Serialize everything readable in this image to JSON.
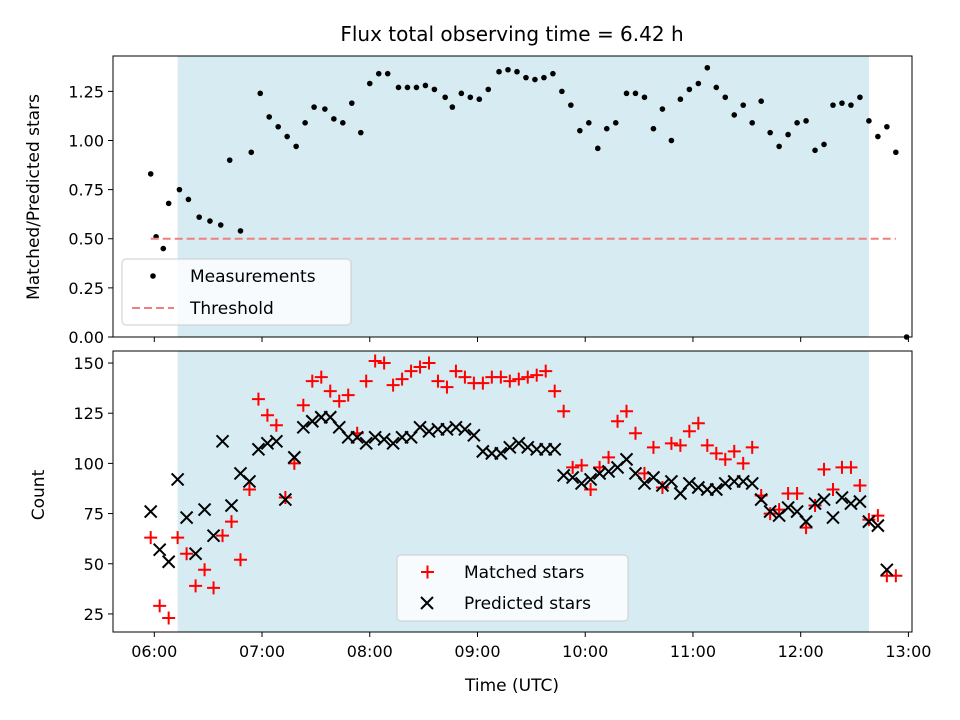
{
  "chart_data": [
    {
      "type": "scatter",
      "title": "Flux total observing time = 6.42 h",
      "ylabel": "Matched/Predicted stars",
      "xlabel": "",
      "xlim": [
        "05:37",
        "13:02"
      ],
      "ylim": [
        0,
        1.43
      ],
      "y_ticks": [
        "0.00",
        "0.25",
        "0.50",
        "0.75",
        "1.00",
        "1.25"
      ],
      "x_ticks": [
        "06:00",
        "07:00",
        "08:00",
        "09:00",
        "10:00",
        "11:00",
        "12:00",
        "13:00"
      ],
      "tick_labels_visible": false,
      "shaded_span": [
        "06:13",
        "12:38"
      ],
      "legend_position": "lower left",
      "series": [
        {
          "name": "Measurements",
          "marker": "dot",
          "color": "#000000",
          "points": [
            [
              "05:58",
              0.83
            ],
            [
              "06:01",
              0.51
            ],
            [
              "06:05",
              0.45
            ],
            [
              "06:08",
              0.68
            ],
            [
              "06:14",
              0.75
            ],
            [
              "06:19",
              0.7
            ],
            [
              "06:25",
              0.61
            ],
            [
              "06:31",
              0.59
            ],
            [
              "06:37",
              0.57
            ],
            [
              "06:42",
              0.9
            ],
            [
              "06:48",
              0.54
            ],
            [
              "06:54",
              0.94
            ],
            [
              "06:59",
              1.24
            ],
            [
              "07:04",
              1.12
            ],
            [
              "07:09",
              1.07
            ],
            [
              "07:14",
              1.02
            ],
            [
              "07:19",
              0.97
            ],
            [
              "07:24",
              1.09
            ],
            [
              "07:29",
              1.17
            ],
            [
              "07:35",
              1.16
            ],
            [
              "07:40",
              1.11
            ],
            [
              "07:45",
              1.09
            ],
            [
              "07:50",
              1.19
            ],
            [
              "07:55",
              1.04
            ],
            [
              "08:00",
              1.29
            ],
            [
              "08:05",
              1.34
            ],
            [
              "08:10",
              1.34
            ],
            [
              "08:16",
              1.27
            ],
            [
              "08:21",
              1.27
            ],
            [
              "08:26",
              1.27
            ],
            [
              "08:31",
              1.28
            ],
            [
              "08:36",
              1.26
            ],
            [
              "08:42",
              1.22
            ],
            [
              "08:46",
              1.17
            ],
            [
              "08:51",
              1.24
            ],
            [
              "08:56",
              1.22
            ],
            [
              "09:01",
              1.21
            ],
            [
              "09:06",
              1.26
            ],
            [
              "09:12",
              1.35
            ],
            [
              "09:17",
              1.36
            ],
            [
              "09:22",
              1.35
            ],
            [
              "09:27",
              1.32
            ],
            [
              "09:32",
              1.31
            ],
            [
              "09:37",
              1.32
            ],
            [
              "09:42",
              1.34
            ],
            [
              "09:47",
              1.25
            ],
            [
              "09:52",
              1.18
            ],
            [
              "09:57",
              1.05
            ],
            [
              "10:02",
              1.09
            ],
            [
              "10:07",
              0.96
            ],
            [
              "10:12",
              1.06
            ],
            [
              "10:17",
              1.09
            ],
            [
              "10:23",
              1.24
            ],
            [
              "10:28",
              1.24
            ],
            [
              "10:33",
              1.22
            ],
            [
              "10:38",
              1.06
            ],
            [
              "10:43",
              1.16
            ],
            [
              "10:48",
              1.0
            ],
            [
              "10:53",
              1.21
            ],
            [
              "10:58",
              1.26
            ],
            [
              "11:03",
              1.29
            ],
            [
              "11:08",
              1.37
            ],
            [
              "11:13",
              1.27
            ],
            [
              "11:18",
              1.22
            ],
            [
              "11:23",
              1.13
            ],
            [
              "11:28",
              1.18
            ],
            [
              "11:33",
              1.09
            ],
            [
              "11:38",
              1.2
            ],
            [
              "11:43",
              1.04
            ],
            [
              "11:48",
              0.97
            ],
            [
              "11:53",
              1.03
            ],
            [
              "11:58",
              1.09
            ],
            [
              "12:03",
              1.1
            ],
            [
              "12:08",
              0.95
            ],
            [
              "12:13",
              0.98
            ],
            [
              "12:18",
              1.18
            ],
            [
              "12:23",
              1.19
            ],
            [
              "12:28",
              1.18
            ],
            [
              "12:33",
              1.22
            ],
            [
              "12:38",
              1.1
            ],
            [
              "12:43",
              1.02
            ],
            [
              "12:48",
              1.07
            ],
            [
              "12:53",
              0.94
            ],
            [
              "12:59",
              0.0
            ]
          ]
        },
        {
          "name": "Threshold",
          "marker": "dashed-line",
          "color": "#ef8080",
          "points": [
            [
              "05:58",
              0.5
            ],
            [
              "12:53",
              0.5
            ]
          ]
        }
      ]
    },
    {
      "type": "scatter",
      "title": "",
      "ylabel": "Count",
      "xlabel": "Time (UTC)",
      "xlim": [
        "05:37",
        "13:02"
      ],
      "ylim": [
        16,
        156
      ],
      "y_ticks": [
        "25",
        "50",
        "75",
        "100",
        "125",
        "150"
      ],
      "x_ticks": [
        "06:00",
        "07:00",
        "08:00",
        "09:00",
        "10:00",
        "11:00",
        "12:00",
        "13:00"
      ],
      "shaded_span": [
        "06:13",
        "12:38"
      ],
      "legend_position": "lower center",
      "series": [
        {
          "name": "Matched stars",
          "marker": "plus",
          "color": "#ff0000",
          "points": [
            [
              "05:58",
              63
            ],
            [
              "06:03",
              29
            ],
            [
              "06:08",
              23
            ],
            [
              "06:13",
              63
            ],
            [
              "06:18",
              55
            ],
            [
              "06:23",
              39
            ],
            [
              "06:28",
              47
            ],
            [
              "06:33",
              38
            ],
            [
              "06:38",
              64
            ],
            [
              "06:43",
              71
            ],
            [
              "06:48",
              52
            ],
            [
              "06:53",
              87
            ],
            [
              "06:58",
              132
            ],
            [
              "07:03",
              124
            ],
            [
              "07:08",
              119
            ],
            [
              "07:13",
              83
            ],
            [
              "07:18",
              100
            ],
            [
              "07:23",
              129
            ],
            [
              "07:28",
              141
            ],
            [
              "07:33",
              143
            ],
            [
              "07:38",
              136
            ],
            [
              "07:43",
              131
            ],
            [
              "07:48",
              134
            ],
            [
              "07:53",
              115
            ],
            [
              "07:58",
              141
            ],
            [
              "08:03",
              151
            ],
            [
              "08:08",
              150
            ],
            [
              "08:13",
              139
            ],
            [
              "08:18",
              142
            ],
            [
              "08:23",
              146
            ],
            [
              "08:28",
              148
            ],
            [
              "08:33",
              150
            ],
            [
              "08:38",
              141
            ],
            [
              "08:43",
              138
            ],
            [
              "08:48",
              146
            ],
            [
              "08:53",
              143
            ],
            [
              "08:58",
              140
            ],
            [
              "09:03",
              140
            ],
            [
              "09:08",
              143
            ],
            [
              "09:13",
              143
            ],
            [
              "09:18",
              141
            ],
            [
              "09:23",
              142
            ],
            [
              "09:28",
              143
            ],
            [
              "09:33",
              144
            ],
            [
              "09:38",
              146
            ],
            [
              "09:43",
              136
            ],
            [
              "09:48",
              126
            ],
            [
              "09:53",
              98
            ],
            [
              "09:58",
              99
            ],
            [
              "10:03",
              87
            ],
            [
              "10:08",
              98
            ],
            [
              "10:13",
              103
            ],
            [
              "10:18",
              121
            ],
            [
              "10:23",
              126
            ],
            [
              "10:28",
              115
            ],
            [
              "10:33",
              95
            ],
            [
              "10:38",
              108
            ],
            [
              "10:43",
              88
            ],
            [
              "10:48",
              110
            ],
            [
              "10:53",
              109
            ],
            [
              "10:58",
              116
            ],
            [
              "11:03",
              120
            ],
            [
              "11:08",
              109
            ],
            [
              "11:13",
              105
            ],
            [
              "11:18",
              102
            ],
            [
              "11:23",
              106
            ],
            [
              "11:28",
              100
            ],
            [
              "11:33",
              108
            ],
            [
              "11:38",
              84
            ],
            [
              "11:43",
              75
            ],
            [
              "11:48",
              77
            ],
            [
              "11:53",
              85
            ],
            [
              "11:58",
              85
            ],
            [
              "12:03",
              68
            ],
            [
              "12:08",
              79
            ],
            [
              "12:13",
              97
            ],
            [
              "12:18",
              87
            ],
            [
              "12:23",
              98
            ],
            [
              "12:28",
              98
            ],
            [
              "12:33",
              89
            ],
            [
              "12:38",
              72
            ],
            [
              "12:43",
              74
            ],
            [
              "12:48",
              44
            ],
            [
              "12:53",
              44
            ]
          ]
        },
        {
          "name": "Predicted stars",
          "marker": "x",
          "color": "#000000",
          "points": [
            [
              "05:58",
              76
            ],
            [
              "06:03",
              57
            ],
            [
              "06:08",
              51
            ],
            [
              "06:13",
              92
            ],
            [
              "06:18",
              73
            ],
            [
              "06:23",
              55
            ],
            [
              "06:28",
              77
            ],
            [
              "06:33",
              64
            ],
            [
              "06:38",
              111
            ],
            [
              "06:43",
              79
            ],
            [
              "06:48",
              95
            ],
            [
              "06:53",
              91
            ],
            [
              "06:58",
              107
            ],
            [
              "07:03",
              110
            ],
            [
              "07:08",
              111
            ],
            [
              "07:13",
              82
            ],
            [
              "07:18",
              103
            ],
            [
              "07:23",
              118
            ],
            [
              "07:28",
              121
            ],
            [
              "07:33",
              123
            ],
            [
              "07:38",
              123
            ],
            [
              "07:43",
              118
            ],
            [
              "07:48",
              113
            ],
            [
              "07:53",
              113
            ],
            [
              "07:58",
              110
            ],
            [
              "08:03",
              113
            ],
            [
              "08:08",
              112
            ],
            [
              "08:13",
              110
            ],
            [
              "08:18",
              113
            ],
            [
              "08:23",
              113
            ],
            [
              "08:28",
              118
            ],
            [
              "08:33",
              116
            ],
            [
              "08:38",
              117
            ],
            [
              "08:43",
              117
            ],
            [
              "08:48",
              118
            ],
            [
              "08:53",
              117
            ],
            [
              "08:58",
              114
            ],
            [
              "09:03",
              106
            ],
            [
              "09:08",
              105
            ],
            [
              "09:13",
              105
            ],
            [
              "09:18",
              108
            ],
            [
              "09:23",
              110
            ],
            [
              "09:28",
              108
            ],
            [
              "09:33",
              107
            ],
            [
              "09:38",
              107
            ],
            [
              "09:43",
              107
            ],
            [
              "09:48",
              94
            ],
            [
              "09:53",
              93
            ],
            [
              "09:58",
              90
            ],
            [
              "10:03",
              92
            ],
            [
              "10:08",
              95
            ],
            [
              "10:13",
              96
            ],
            [
              "10:18",
              98
            ],
            [
              "10:23",
              102
            ],
            [
              "10:28",
              95
            ],
            [
              "10:33",
              90
            ],
            [
              "10:38",
              93
            ],
            [
              "10:43",
              89
            ],
            [
              "10:48",
              91
            ],
            [
              "10:53",
              85
            ],
            [
              "10:58",
              90
            ],
            [
              "11:03",
              88
            ],
            [
              "11:08",
              87
            ],
            [
              "11:13",
              87
            ],
            [
              "11:18",
              90
            ],
            [
              "11:23",
              91
            ],
            [
              "11:28",
              91
            ],
            [
              "11:33",
              90
            ],
            [
              "11:38",
              82
            ],
            [
              "11:43",
              76
            ],
            [
              "11:48",
              74
            ],
            [
              "11:53",
              78
            ],
            [
              "11:58",
              76
            ],
            [
              "12:03",
              71
            ],
            [
              "12:08",
              80
            ],
            [
              "12:13",
              82
            ],
            [
              "12:18",
              73
            ],
            [
              "12:23",
              83
            ],
            [
              "12:28",
              80
            ],
            [
              "12:33",
              81
            ],
            [
              "12:38",
              71
            ],
            [
              "12:43",
              69
            ],
            [
              "12:48",
              47
            ]
          ]
        }
      ]
    }
  ]
}
